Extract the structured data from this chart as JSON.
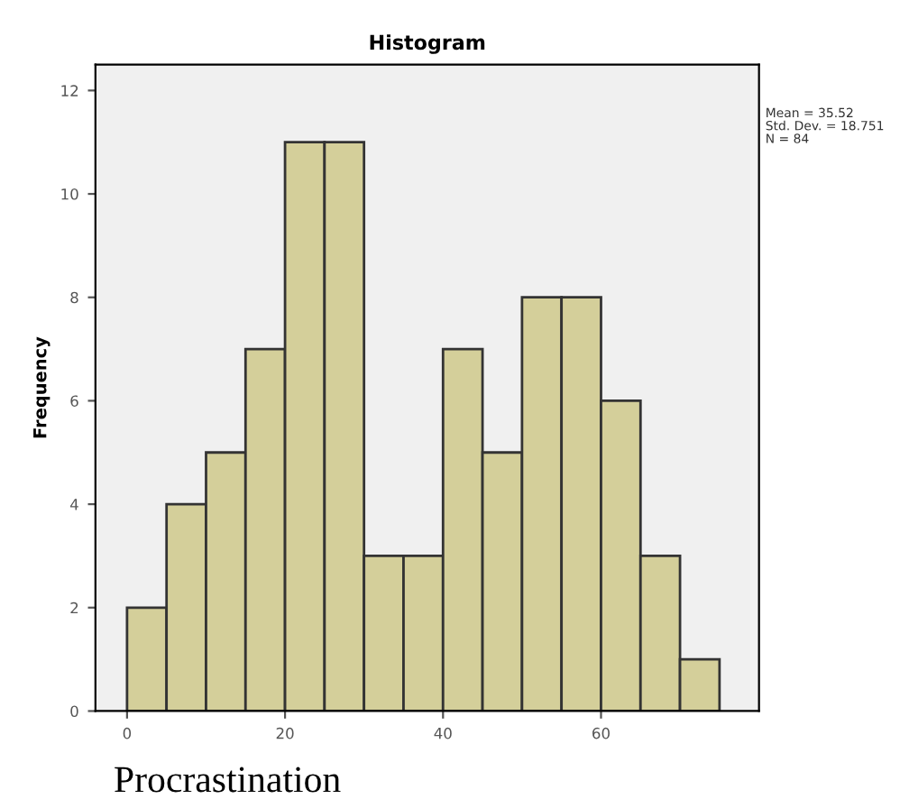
{
  "chart_data": {
    "type": "histogram",
    "title": "Histogram",
    "xlabel": "Procrastination",
    "ylabel": "Frequency",
    "bins": [
      0,
      5,
      10,
      15,
      20,
      25,
      30,
      35,
      40,
      45,
      50,
      55,
      60,
      65,
      70,
      75
    ],
    "values": [
      2,
      4,
      5,
      7,
      11,
      11,
      3,
      3,
      7,
      5,
      8,
      8,
      6,
      3,
      1
    ],
    "color": "#d4cf9a",
    "xlim": [
      -4,
      80
    ],
    "xticks": [
      0,
      20,
      40,
      60
    ],
    "ylim": [
      0,
      12.5
    ],
    "yticks": [
      0,
      2,
      4,
      6,
      8,
      10,
      12
    ],
    "annotations": [
      "Mean = 35.52",
      "Std. Dev. = 18.751",
      "N = 84"
    ],
    "grid": false,
    "legend": false
  }
}
